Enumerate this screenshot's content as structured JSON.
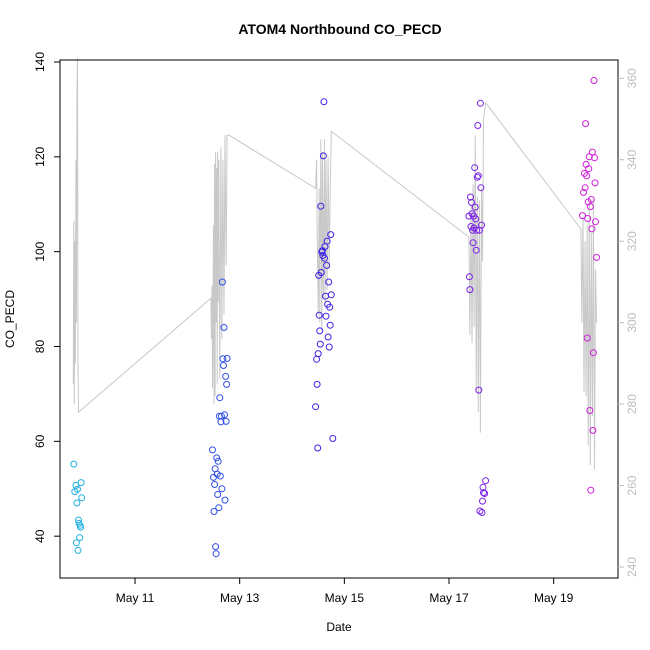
{
  "chart_data": {
    "type": "scatter",
    "title": "ATOM4 Northbound CO_PECD",
    "xlabel": "Date",
    "ylabel": "CO_PECD",
    "ylabel_right": "",
    "grid": false,
    "x_units": "date (day of May)",
    "xlim": [
      9.7,
      20.0
    ],
    "ylim": [
      33.5,
      140
    ],
    "ylim_right": [
      240,
      364
    ],
    "x_ticks": [
      11,
      13,
      15,
      17,
      19
    ],
    "x_tick_labels": [
      "May 11",
      "May 13",
      "May 15",
      "May 17",
      "May 19"
    ],
    "y_ticks": [
      40,
      60,
      80,
      100,
      120,
      140
    ],
    "y_ticks_right": [
      240,
      260,
      280,
      300,
      320,
      340,
      360
    ],
    "colors": {
      "line": "#c8c8c8",
      "axis": "#000000",
      "right_axis": "#bdbdbd",
      "series": [
        "#1fb0e0",
        "#2f4fe6",
        "#3d22e6",
        "#7a22e6",
        "#d01fd8"
      ]
    },
    "series": [
      {
        "points": [
          [
            9.83,
            55.2
          ],
          [
            9.85,
            49.4
          ],
          [
            9.87,
            50.7
          ],
          [
            9.88,
            38.6
          ],
          [
            9.89,
            47.0
          ],
          [
            9.9,
            49.9
          ],
          [
            9.91,
            37.0
          ],
          [
            9.92,
            43.4
          ],
          [
            9.93,
            42.7
          ],
          [
            9.94,
            39.7
          ],
          [
            9.95,
            42.3
          ],
          [
            9.96,
            41.9
          ],
          [
            9.97,
            51.3
          ],
          [
            9.98,
            48.1
          ]
        ]
      },
      {
        "points": [
          [
            12.48,
            58.2
          ],
          [
            12.5,
            52.4
          ],
          [
            12.51,
            45.2
          ],
          [
            12.52,
            50.9
          ],
          [
            12.53,
            54.2
          ],
          [
            12.54,
            37.8
          ],
          [
            12.55,
            36.3
          ],
          [
            12.56,
            56.5
          ],
          [
            12.57,
            53.1
          ],
          [
            12.58,
            48.8
          ],
          [
            12.59,
            55.8
          ],
          [
            12.6,
            46.0
          ],
          [
            12.61,
            65.3
          ],
          [
            12.62,
            69.2
          ],
          [
            12.63,
            52.7
          ],
          [
            12.64,
            64.1
          ],
          [
            12.65,
            65.3
          ],
          [
            12.66,
            50.0
          ],
          [
            12.67,
            93.6
          ],
          [
            12.68,
            77.4
          ],
          [
            12.69,
            76.0
          ],
          [
            12.7,
            84.0
          ],
          [
            12.71,
            65.6
          ],
          [
            12.72,
            47.6
          ],
          [
            12.73,
            73.7
          ],
          [
            12.74,
            64.2
          ],
          [
            12.75,
            72.0
          ],
          [
            12.76,
            77.5
          ]
        ]
      },
      {
        "points": [
          [
            14.45,
            67.3
          ],
          [
            14.47,
            77.3
          ],
          [
            14.48,
            72.0
          ],
          [
            14.49,
            58.6
          ],
          [
            14.5,
            78.5
          ],
          [
            14.51,
            95.0
          ],
          [
            14.52,
            86.6
          ],
          [
            14.53,
            83.3
          ],
          [
            14.54,
            80.5
          ],
          [
            14.55,
            109.6
          ],
          [
            14.56,
            95.6
          ],
          [
            14.57,
            99.9
          ],
          [
            14.58,
            100.2
          ],
          [
            14.59,
            99.2
          ],
          [
            14.6,
            120.2
          ],
          [
            14.61,
            131.6
          ],
          [
            14.62,
            98.6
          ],
          [
            14.63,
            101.1
          ],
          [
            14.64,
            90.6
          ],
          [
            14.65,
            86.4
          ],
          [
            14.66,
            97.1
          ],
          [
            14.67,
            102.2
          ],
          [
            14.68,
            88.9
          ],
          [
            14.69,
            82.0
          ],
          [
            14.7,
            93.6
          ],
          [
            14.71,
            79.9
          ],
          [
            14.72,
            88.3
          ],
          [
            14.73,
            84.5
          ],
          [
            14.74,
            103.6
          ],
          [
            14.75,
            90.9
          ],
          [
            14.78,
            60.6
          ]
        ]
      },
      {
        "points": [
          [
            17.38,
            107.5
          ],
          [
            17.39,
            94.7
          ],
          [
            17.4,
            92.0
          ],
          [
            17.41,
            111.5
          ],
          [
            17.42,
            105.3
          ],
          [
            17.43,
            110.4
          ],
          [
            17.44,
            108.0
          ],
          [
            17.45,
            104.5
          ],
          [
            17.46,
            101.9
          ],
          [
            17.47,
            107.5
          ],
          [
            17.48,
            105.0
          ],
          [
            17.49,
            117.7
          ],
          [
            17.5,
            109.4
          ],
          [
            17.51,
            106.9
          ],
          [
            17.52,
            100.3
          ],
          [
            17.53,
            104.5
          ],
          [
            17.54,
            115.7
          ],
          [
            17.55,
            126.6
          ],
          [
            17.56,
            116.0
          ],
          [
            17.57,
            70.8
          ],
          [
            17.58,
            104.5
          ],
          [
            17.59,
            45.3
          ],
          [
            17.6,
            131.3
          ],
          [
            17.61,
            113.5
          ],
          [
            17.62,
            105.6
          ],
          [
            17.63,
            45.0
          ],
          [
            17.64,
            47.4
          ],
          [
            17.65,
            50.3
          ],
          [
            17.66,
            49.2
          ],
          [
            17.68,
            49.0
          ],
          [
            17.7,
            51.7
          ]
        ]
      },
      {
        "points": [
          [
            19.55,
            107.6
          ],
          [
            19.57,
            112.5
          ],
          [
            19.59,
            116.5
          ],
          [
            19.6,
            113.5
          ],
          [
            19.61,
            127.0
          ],
          [
            19.62,
            118.4
          ],
          [
            19.63,
            116.0
          ],
          [
            19.64,
            81.8
          ],
          [
            19.65,
            107.0
          ],
          [
            19.66,
            110.5
          ],
          [
            19.67,
            117.5
          ],
          [
            19.68,
            120.0
          ],
          [
            19.69,
            66.5
          ],
          [
            19.7,
            109.5
          ],
          [
            19.71,
            49.7
          ],
          [
            19.72,
            111.0
          ],
          [
            19.73,
            104.8
          ],
          [
            19.74,
            121.0
          ],
          [
            19.75,
            62.3
          ],
          [
            19.76,
            78.7
          ],
          [
            19.77,
            136.1
          ],
          [
            19.78,
            119.8
          ],
          [
            19.79,
            114.5
          ],
          [
            19.8,
            106.3
          ],
          [
            19.82,
            98.8
          ]
        ]
      }
    ],
    "line": {
      "axis": "right",
      "points": [
        [
          9.82,
          285
        ],
        [
          9.83,
          325
        ],
        [
          9.84,
          280
        ],
        [
          9.85,
          320
        ],
        [
          9.86,
          290
        ],
        [
          9.87,
          340
        ],
        [
          9.88,
          300
        ],
        [
          9.89,
          355
        ],
        [
          9.9,
          365
        ],
        [
          9.91,
          290
        ],
        [
          9.92,
          278
        ],
        [
          12.45,
          306
        ],
        [
          12.46,
          296
        ],
        [
          12.47,
          309
        ],
        [
          12.48,
          284
        ],
        [
          12.5,
          324
        ],
        [
          12.51,
          280
        ],
        [
          12.52,
          339
        ],
        [
          12.53,
          282
        ],
        [
          12.54,
          342
        ],
        [
          12.55,
          300
        ],
        [
          12.56,
          338
        ],
        [
          12.57,
          285
        ],
        [
          12.58,
          342
        ],
        [
          12.59,
          305
        ],
        [
          12.6,
          340
        ],
        [
          12.62,
          286
        ],
        [
          12.64,
          343
        ],
        [
          12.66,
          296
        ],
        [
          12.68,
          340
        ],
        [
          12.7,
          302
        ],
        [
          12.72,
          346
        ],
        [
          12.74,
          314
        ],
        [
          12.76,
          346
        ],
        [
          12.8,
          346
        ],
        [
          14.45,
          333
        ],
        [
          14.47,
          340
        ],
        [
          14.48,
          324
        ],
        [
          14.5,
          302
        ],
        [
          14.52,
          333
        ],
        [
          14.53,
          300
        ],
        [
          14.55,
          345
        ],
        [
          14.57,
          298
        ],
        [
          14.58,
          342
        ],
        [
          14.6,
          306
        ],
        [
          14.62,
          345
        ],
        [
          14.63,
          304
        ],
        [
          14.65,
          340
        ],
        [
          14.67,
          308
        ],
        [
          14.69,
          341
        ],
        [
          14.71,
          313
        ],
        [
          14.73,
          332
        ],
        [
          14.75,
          347
        ],
        [
          17.38,
          321
        ],
        [
          17.4,
          297
        ],
        [
          17.42,
          329
        ],
        [
          17.44,
          295
        ],
        [
          17.46,
          334
        ],
        [
          17.48,
          299
        ],
        [
          17.5,
          346
        ],
        [
          17.52,
          284
        ],
        [
          17.54,
          331
        ],
        [
          17.56,
          278
        ],
        [
          17.58,
          330
        ],
        [
          17.6,
          273
        ],
        [
          17.62,
          333
        ],
        [
          17.64,
          315
        ],
        [
          17.66,
          350
        ],
        [
          17.7,
          354
        ],
        [
          19.52,
          323
        ],
        [
          19.54,
          300
        ],
        [
          19.56,
          326
        ],
        [
          19.58,
          283
        ],
        [
          19.6,
          320
        ],
        [
          19.62,
          282
        ],
        [
          19.64,
          324
        ],
        [
          19.66,
          270
        ],
        [
          19.68,
          329
        ],
        [
          19.7,
          265
        ],
        [
          19.72,
          322
        ],
        [
          19.74,
          277
        ],
        [
          19.76,
          330
        ],
        [
          19.78,
          264
        ],
        [
          19.8,
          313
        ],
        [
          19.82,
          300
        ]
      ]
    }
  }
}
